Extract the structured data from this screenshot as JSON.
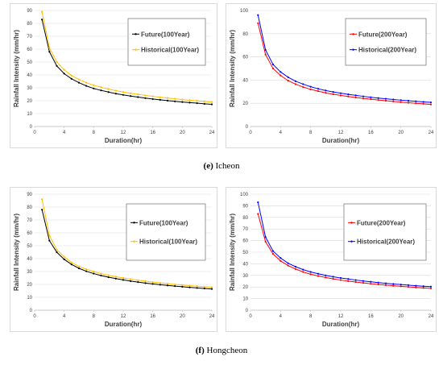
{
  "captions": [
    {
      "label": "(e)",
      "text": "Icheon"
    },
    {
      "label": "(f)",
      "text": "Hongcheon"
    }
  ],
  "colors": {
    "future_100": "#000000",
    "historical_100": "#ffc000",
    "future_200": "#ff0000",
    "historical_200": "#0000ff"
  },
  "chart_data": [
    {
      "type": "line",
      "xlabel": "Duration(hr)",
      "ylabel": "Rainfall Intensity (mm/hr)",
      "xlim": [
        0,
        24
      ],
      "ylim": [
        0,
        90
      ],
      "xticks": [
        0,
        4,
        8,
        12,
        16,
        20,
        24
      ],
      "yticks": [
        0,
        10,
        20,
        30,
        40,
        50,
        60,
        70,
        80,
        90
      ],
      "legend_position": "top-right",
      "x": [
        1,
        2,
        3,
        4,
        5,
        6,
        7,
        8,
        9,
        10,
        11,
        12,
        13,
        14,
        15,
        16,
        17,
        18,
        19,
        20,
        21,
        22,
        23,
        24
      ],
      "series": [
        {
          "name": "Future(100Year)",
          "color": "#000000",
          "values": [
            83,
            58,
            47,
            41,
            37,
            34,
            31.5,
            29.5,
            28,
            26.7,
            25.5,
            24.5,
            23.6,
            22.8,
            22,
            21.3,
            20.7,
            20.1,
            19.5,
            19,
            18.5,
            18.1,
            17.6,
            17.2
          ]
        },
        {
          "name": "Historical(100Year)",
          "color": "#ffc000",
          "values": [
            89,
            61,
            50,
            44,
            39.5,
            36.5,
            34,
            32,
            30.5,
            29,
            27.8,
            26.7,
            25.8,
            24.9,
            24.1,
            23.4,
            22.7,
            22.1,
            21.5,
            20.9,
            20.4,
            19.9,
            19.4,
            19
          ]
        }
      ]
    },
    {
      "type": "line",
      "xlabel": "Duration(hr)",
      "ylabel": "Rainfall Intensity (mm/hr)",
      "xlim": [
        0,
        24
      ],
      "ylim": [
        0,
        100
      ],
      "xticks": [
        0,
        4,
        8,
        12,
        16,
        20,
        24
      ],
      "yticks": [
        0,
        20,
        40,
        60,
        80,
        100
      ],
      "legend_position": "top-right",
      "x": [
        1,
        2,
        3,
        4,
        5,
        6,
        7,
        8,
        9,
        10,
        11,
        12,
        13,
        14,
        15,
        16,
        17,
        18,
        19,
        20,
        21,
        22,
        23,
        24
      ],
      "series": [
        {
          "name": "Future(200Year)",
          "color": "#ff0000",
          "values": [
            89,
            62,
            50,
            44,
            39.5,
            36.5,
            34,
            32,
            30.5,
            29,
            27.8,
            26.8,
            25.9,
            25,
            24.2,
            23.5,
            22.8,
            22.2,
            21.6,
            21,
            20.5,
            20,
            19.5,
            19
          ]
        },
        {
          "name": "Historical(200Year)",
          "color": "#0000ff",
          "values": [
            96,
            66,
            53.5,
            47,
            42.5,
            39,
            36.5,
            34.3,
            32.5,
            31,
            29.8,
            28.7,
            27.7,
            26.8,
            26,
            25.2,
            24.5,
            23.9,
            23.3,
            22.7,
            22.2,
            21.7,
            21.2,
            20.8
          ]
        }
      ]
    },
    {
      "type": "line",
      "xlabel": "Duration(hr)",
      "ylabel": "Rainfall Intensity (mm/hr)",
      "xlim": [
        0,
        24
      ],
      "ylim": [
        0,
        90
      ],
      "xticks": [
        0,
        4,
        8,
        12,
        16,
        20,
        24
      ],
      "yticks": [
        0,
        10,
        20,
        30,
        40,
        50,
        60,
        70,
        80,
        90
      ],
      "legend_position": "right",
      "x": [
        1,
        2,
        3,
        4,
        5,
        6,
        7,
        8,
        9,
        10,
        11,
        12,
        13,
        14,
        15,
        16,
        17,
        18,
        19,
        20,
        21,
        22,
        23,
        24
      ],
      "series": [
        {
          "name": "Future(100Year)",
          "color": "#000000",
          "values": [
            78,
            54,
            45,
            39.5,
            35.5,
            32.5,
            30.2,
            28.4,
            26.9,
            25.6,
            24.5,
            23.5,
            22.6,
            21.8,
            21,
            20.4,
            19.8,
            19.2,
            18.7,
            18.2,
            17.7,
            17.3,
            16.9,
            16.5
          ]
        },
        {
          "name": "Historical(100Year)",
          "color": "#ffc000",
          "values": [
            86,
            58,
            47,
            41.5,
            37,
            34,
            31.8,
            30,
            28.4,
            27.1,
            26,
            25,
            24.1,
            23.3,
            22.5,
            21.8,
            21.2,
            20.6,
            20,
            19.5,
            19,
            18.6,
            18.2,
            17.8
          ]
        }
      ]
    },
    {
      "type": "line",
      "xlabel": "Duration(hr)",
      "ylabel": "Rainfall Intensity (mm/hr)",
      "xlim": [
        0,
        24
      ],
      "ylim": [
        0,
        100
      ],
      "xticks": [
        0,
        4,
        8,
        12,
        16,
        20,
        24
      ],
      "yticks": [
        0,
        10,
        20,
        30,
        40,
        50,
        60,
        70,
        80,
        90,
        100
      ],
      "legend_position": "right",
      "x": [
        1,
        2,
        3,
        4,
        5,
        6,
        7,
        8,
        9,
        10,
        11,
        12,
        13,
        14,
        15,
        16,
        17,
        18,
        19,
        20,
        21,
        22,
        23,
        24
      ],
      "series": [
        {
          "name": "Future(200Year)",
          "color": "#ff0000",
          "values": [
            83,
            59,
            48.5,
            42.5,
            38.5,
            35.5,
            33,
            31,
            29.5,
            28.2,
            27,
            26,
            25.1,
            24.3,
            23.5,
            22.8,
            22.2,
            21.6,
            21.1,
            20.6,
            20.1,
            19.6,
            19.2,
            18.8
          ]
        },
        {
          "name": "Historical(200Year)",
          "color": "#0000ff",
          "values": [
            93,
            63,
            51,
            45,
            40.5,
            37.5,
            35,
            33,
            31.4,
            30,
            28.8,
            27.8,
            26.9,
            26,
            25.2,
            24.5,
            23.8,
            23.2,
            22.6,
            22.1,
            21.6,
            21.1,
            20.7,
            20.3
          ]
        }
      ]
    }
  ]
}
